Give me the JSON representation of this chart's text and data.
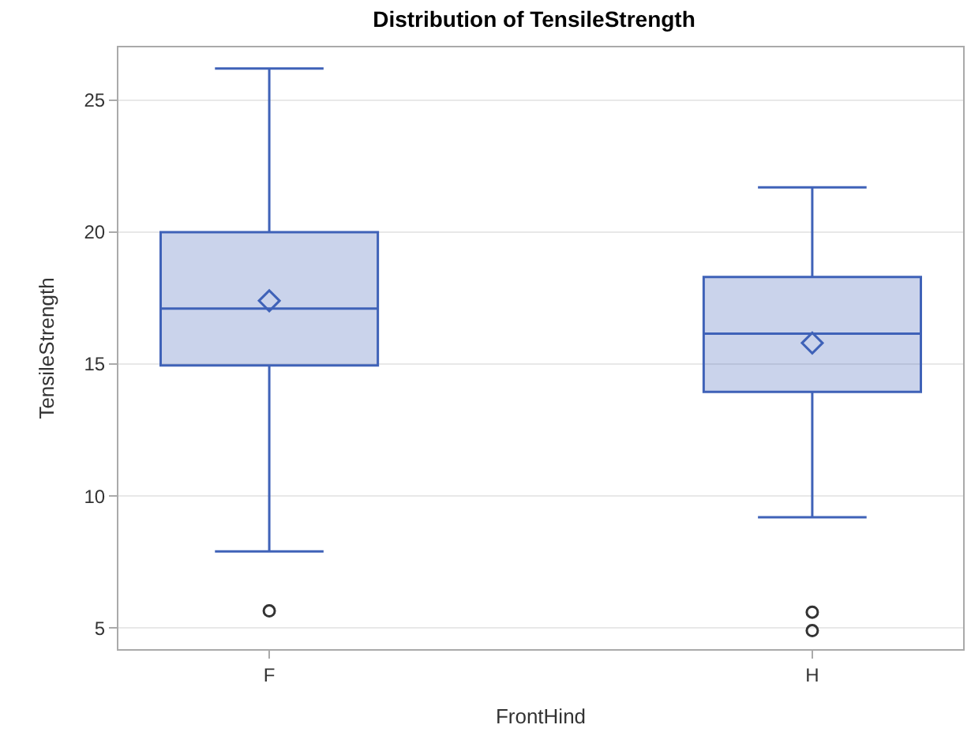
{
  "chart_data": {
    "type": "box",
    "title": "Distribution of TensileStrength",
    "xlabel": "FrontHind",
    "ylabel": "TensileStrength",
    "categories": [
      "F",
      "H"
    ],
    "boxes": [
      {
        "low": 7.9,
        "q1": 14.95,
        "median": 17.1,
        "q3": 20.0,
        "high": 26.2,
        "mean": 17.4,
        "outliers": [
          5.65
        ]
      },
      {
        "low": 9.2,
        "q1": 13.95,
        "median": 16.15,
        "q3": 18.3,
        "high": 21.7,
        "mean": 15.8,
        "outliers": [
          5.6,
          4.9
        ]
      }
    ],
    "color": "#3f62b8",
    "ylim": [
      4.2,
      27
    ],
    "yticks": [
      5,
      10,
      15,
      20,
      25
    ],
    "grid": "y"
  }
}
